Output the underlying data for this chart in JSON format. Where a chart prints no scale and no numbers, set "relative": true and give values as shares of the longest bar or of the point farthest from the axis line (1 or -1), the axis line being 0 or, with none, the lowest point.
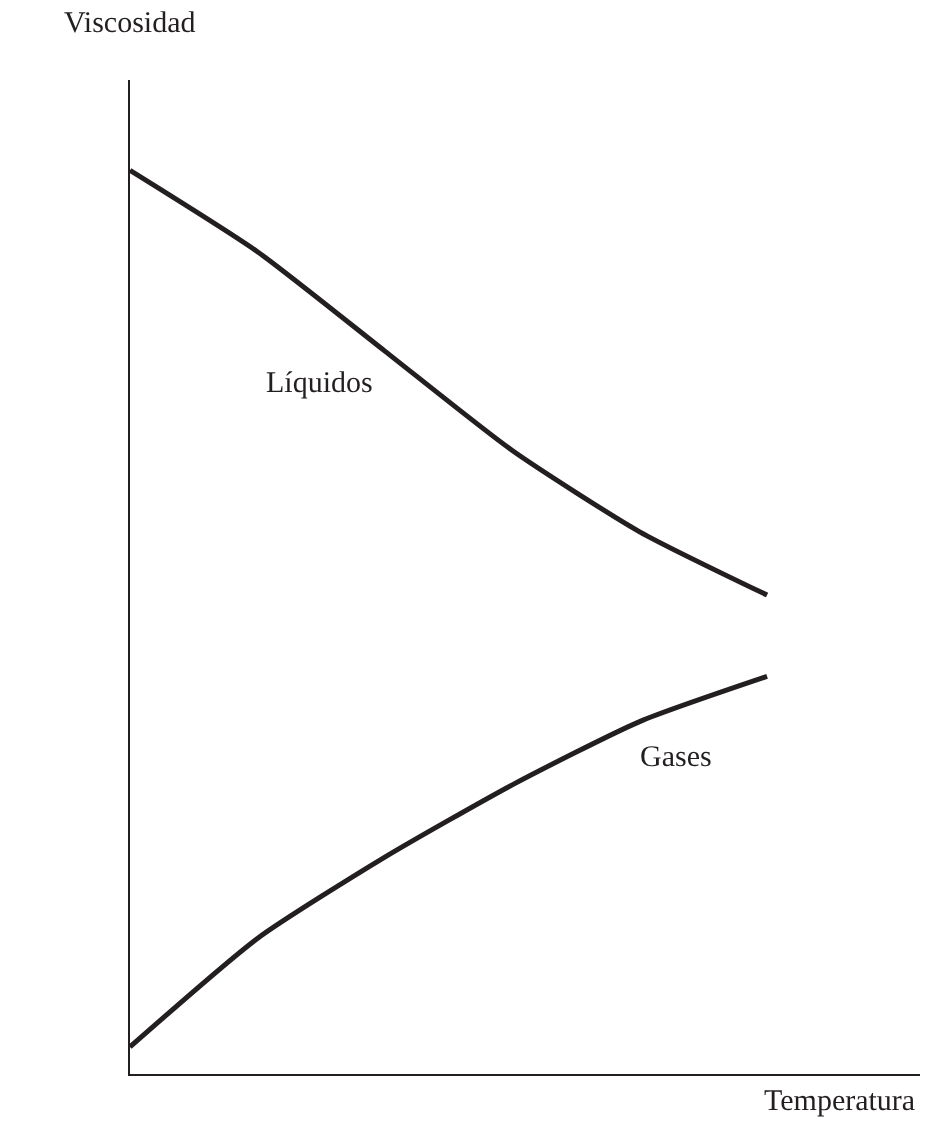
{
  "chart_data": {
    "type": "line",
    "relative": true,
    "xlabel": "Temperatura",
    "ylabel": "Viscosidad",
    "categories": [
      null,
      null,
      null,
      null,
      null,
      null
    ],
    "marker": "none",
    "line_style": "solid",
    "legend": false,
    "series": [
      {
        "name": "Líquidos",
        "color": "#231f20",
        "values": [
          1,
          0.91,
          0.8,
          0.69,
          0.6,
          0.53
        ]
      },
      {
        "name": "Gases",
        "color": "#231f20",
        "values": [
          0.03,
          0.15,
          0.24,
          0.32,
          0.39,
          0.44
        ]
      }
    ]
  }
}
